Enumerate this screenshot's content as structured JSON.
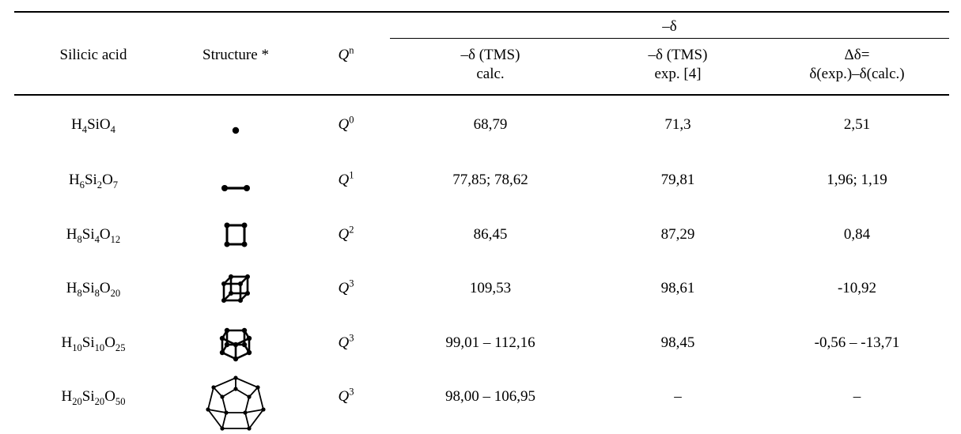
{
  "table": {
    "header": {
      "group": "–δ",
      "col1": "Silicic acid",
      "col2": "Structure *",
      "col3_base": "Q",
      "col3_sup": "n",
      "col4_line1": "–δ (TMS)",
      "col4_line2": "calc.",
      "col5_line1": "–δ (TMS)",
      "col5_line2": "exp. [4]",
      "col6_line1": "Δδ=",
      "col6_line2": "δ(exp.)–δ(calc.)"
    },
    "rows": [
      {
        "acid": {
          "h": "H",
          "hn": "4",
          "si": "Si",
          "sin": "",
          "o": "O",
          "on": "4"
        },
        "structure_icon": "monomer-dot-icon",
        "q": "Q",
        "qn": "0",
        "calc": "68,79",
        "exp": "71,3",
        "delta": "2,51"
      },
      {
        "acid": {
          "h": "H",
          "hn": "6",
          "si": "Si",
          "sin": "2",
          "o": "O",
          "on": "7"
        },
        "structure_icon": "dimer-bond-icon",
        "q": "Q",
        "qn": "1",
        "calc": "77,85; 78,62",
        "exp": "79,81",
        "delta": "1,96; 1,19"
      },
      {
        "acid": {
          "h": "H",
          "hn": "8",
          "si": "Si",
          "sin": "4",
          "o": "O",
          "on": "12"
        },
        "structure_icon": "four-ring-square-icon",
        "q": "Q",
        "qn": "2",
        "calc": "86,45",
        "exp": "87,29",
        "delta": "0,84"
      },
      {
        "acid": {
          "h": "H",
          "hn": "8",
          "si": "Si",
          "sin": "8",
          "o": "O",
          "on": "20"
        },
        "structure_icon": "cube-cage-icon",
        "q": "Q",
        "qn": "3",
        "calc": "109,53",
        "exp": "98,61",
        "delta": "-10,92"
      },
      {
        "acid": {
          "h": "H",
          "hn": "10",
          "si": "Si",
          "sin": "10",
          "o": "O",
          "on": "25"
        },
        "structure_icon": "pentagonal-prism-cage-icon",
        "q": "Q",
        "qn": "3",
        "calc": "99,01 – 112,16",
        "exp": "98,45",
        "delta": "-0,56 – -13,71"
      },
      {
        "acid": {
          "h": "H",
          "hn": "20",
          "si": "Si",
          "sin": "20",
          "o": "O",
          "on": "50"
        },
        "structure_icon": "dodecahedron-cage-icon",
        "q": "Q",
        "qn": "3",
        "calc": "98,00 – 106,95",
        "exp": "–",
        "delta": "–"
      }
    ]
  }
}
